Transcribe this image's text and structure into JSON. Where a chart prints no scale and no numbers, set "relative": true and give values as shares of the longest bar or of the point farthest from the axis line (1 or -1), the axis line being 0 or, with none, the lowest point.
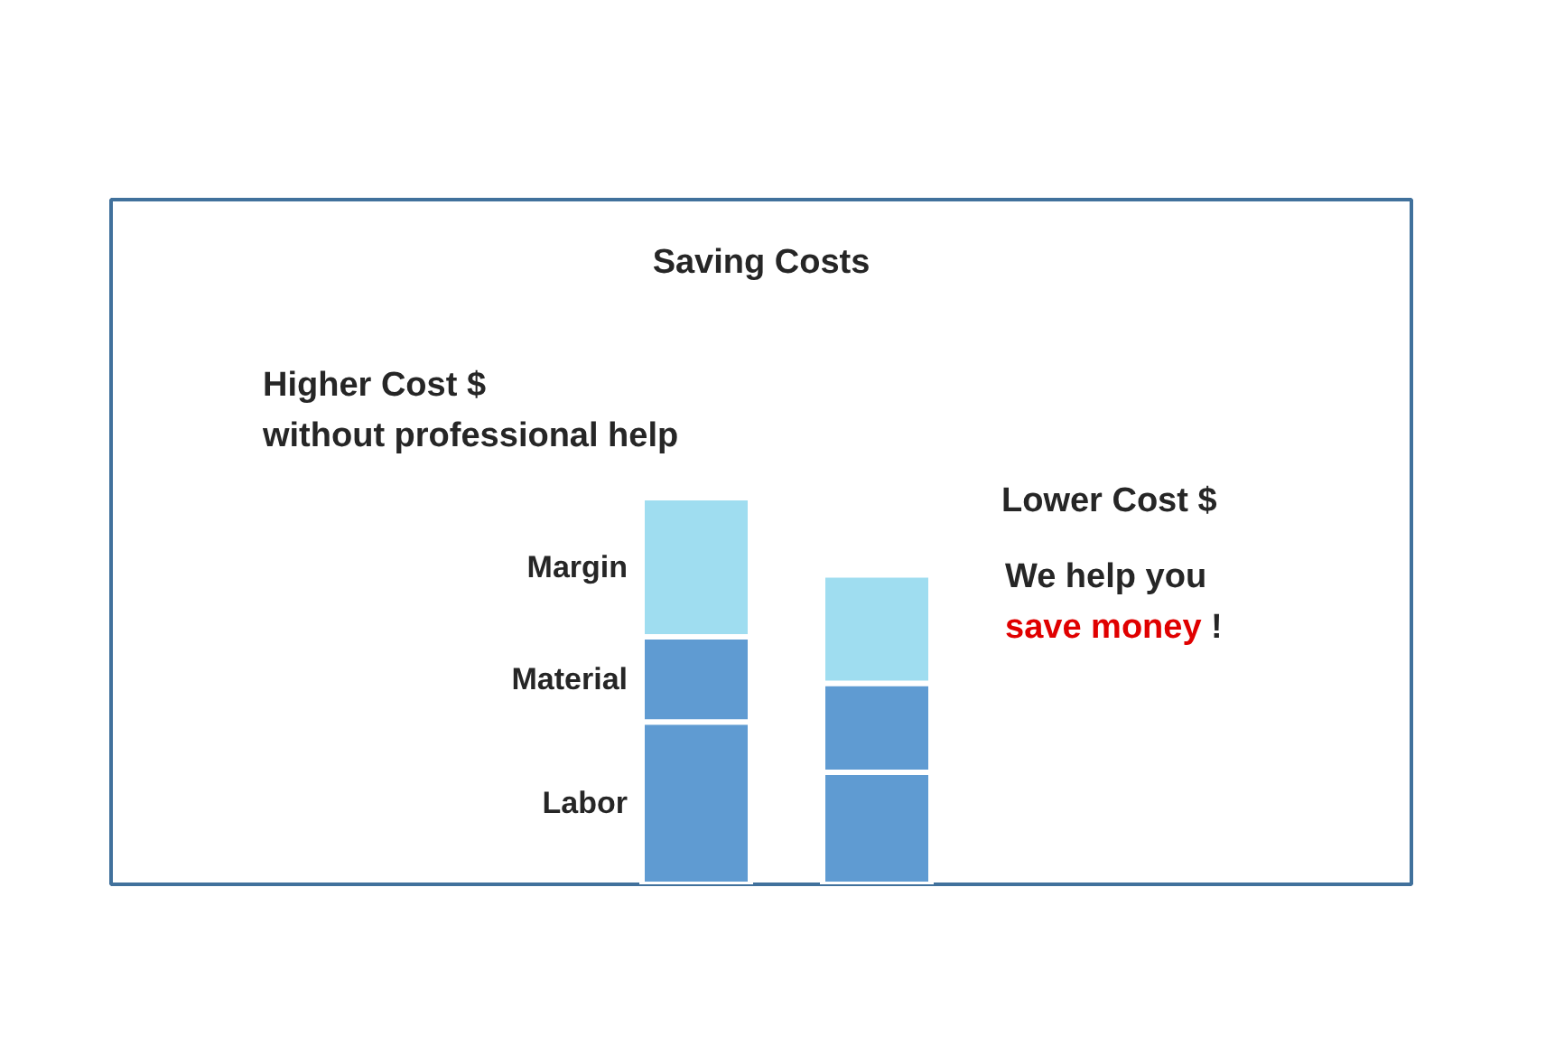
{
  "chart_data": {
    "type": "bar",
    "title": "Saving Costs",
    "categories": [
      null,
      null
    ],
    "stacked": true,
    "relative": true,
    "series": [
      {
        "name": "Labor",
        "color": "#5f9bd2",
        "values": [
          0.42,
          0.29
        ]
      },
      {
        "name": "Material",
        "color": "#5f9bd2",
        "values": [
          0.22,
          0.23
        ]
      },
      {
        "name": "Margin",
        "color": "#9fddf0",
        "values": [
          0.36,
          0.28
        ]
      }
    ],
    "annotations": [
      "Higher Cost $",
      "without professional help",
      "Lower Cost $",
      "We help you",
      "save money !"
    ],
    "legend": false,
    "grid": false
  }
}
